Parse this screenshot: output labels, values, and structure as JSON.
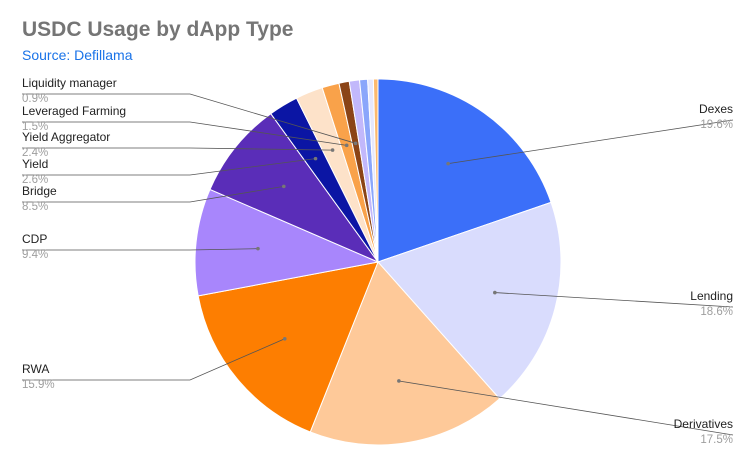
{
  "chart_data": {
    "type": "pie",
    "title": "USDC Usage by dApp Type",
    "subtitle": "Source: Defillama",
    "slices": [
      {
        "label": "Dexes",
        "value": 19.6,
        "value_label": "19.6%",
        "color": "#3b6ff9"
      },
      {
        "label": "Lending",
        "value": 18.6,
        "value_label": "18.6%",
        "color": "#d9dcfd"
      },
      {
        "label": "Derivatives",
        "value": 17.5,
        "value_label": "17.5%",
        "color": "#fec999"
      },
      {
        "label": "RWA",
        "value": 15.9,
        "value_label": "15.9%",
        "color": "#fd7e01"
      },
      {
        "label": "CDP",
        "value": 9.4,
        "value_label": "9.4%",
        "color": "#a886fc"
      },
      {
        "label": "Bridge",
        "value": 8.5,
        "value_label": "8.5%",
        "color": "#5a2db8"
      },
      {
        "label": "Yield",
        "value": 2.6,
        "value_label": "2.6%",
        "color": "#0b15a4"
      },
      {
        "label": "Yield Aggregator",
        "value": 2.4,
        "value_label": "2.4%",
        "color": "#fde2c9"
      },
      {
        "label": "Leveraged Farming",
        "value": 1.5,
        "value_label": "1.5%",
        "color": "#f9a24a"
      },
      {
        "label": "Liquidity manager",
        "value": 0.9,
        "value_label": "0.9%",
        "color": "#8b4416"
      },
      {
        "value": 0.9,
        "color": "#c2b8fb"
      },
      {
        "value": 0.7,
        "color": "#8aa6fb"
      },
      {
        "value": 0.5,
        "color": "#e6e8fd"
      },
      {
        "value": 0.4,
        "color": "#fcb96f"
      }
    ]
  }
}
